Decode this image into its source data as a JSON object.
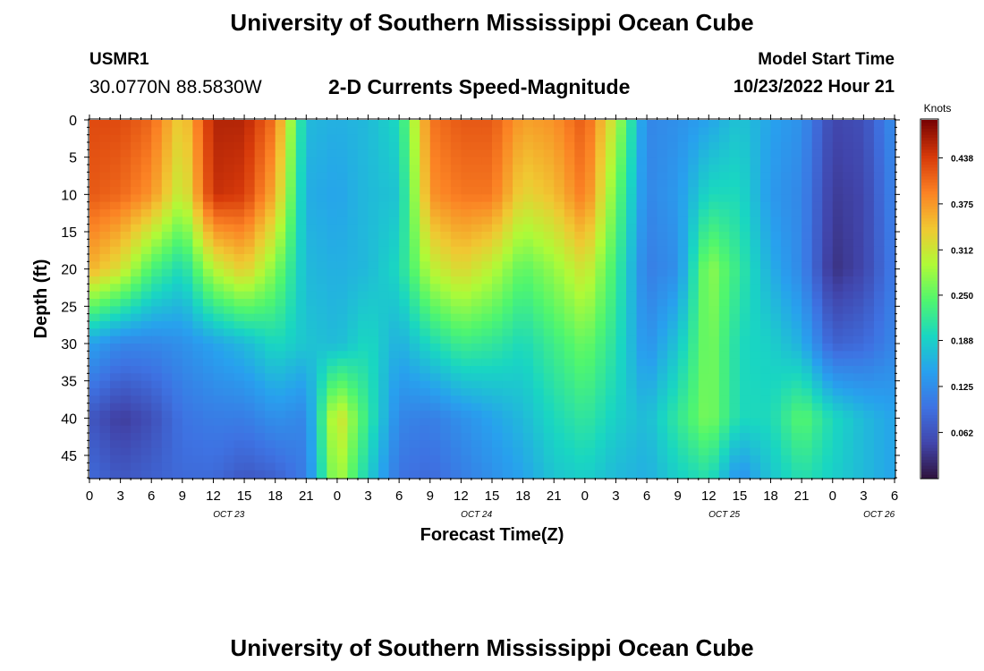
{
  "header": {
    "title": "University of Southern Mississippi Ocean Cube",
    "station": "USMR1",
    "coords": "30.0770N  88.5830W",
    "subtitle": "2-D Currents Speed-Magnitude",
    "model_start_label": "Model Start Time",
    "model_start_value": "10/23/2022 Hour 21"
  },
  "footer": {
    "title": "University of Southern Mississippi Ocean Cube"
  },
  "chart_data": {
    "type": "heatmap",
    "title": "2-D Currents Speed-Magnitude",
    "xlabel": "Forecast Time(Z)",
    "ylabel": "Depth (ft)",
    "colorbar_label": "Knots",
    "x_tick_labels": [
      "0",
      "3",
      "6",
      "9",
      "12",
      "15",
      "18",
      "21",
      "0",
      "3",
      "6",
      "9",
      "12",
      "15",
      "18",
      "21",
      "0",
      "3",
      "6",
      "9",
      "12",
      "15",
      "18",
      "21",
      "0",
      "3",
      "6"
    ],
    "date_labels": [
      "OCT 23",
      "OCT 24",
      "OCT 25",
      "OCT 26"
    ],
    "date_label_hours": [
      13.5,
      37.5,
      61.5,
      76.5
    ],
    "y_ticks": [
      0,
      5,
      10,
      15,
      20,
      25,
      30,
      35,
      40,
      45
    ],
    "ylim": [
      48,
      0
    ],
    "xlim_hours": [
      0,
      78
    ],
    "colorbar_ticks": [
      0.438,
      0.375,
      0.312,
      0.25,
      0.188,
      0.125,
      0.062
    ],
    "color_range": [
      0.0,
      0.49
    ],
    "speed_approx": {
      "hours": [
        0,
        3,
        6,
        9,
        12,
        15,
        18,
        21,
        24,
        27,
        30,
        33,
        36,
        39,
        42,
        45,
        48,
        51,
        54,
        57,
        60,
        63,
        66,
        69,
        72,
        75,
        78
      ],
      "depths": [
        0,
        10,
        20,
        30,
        40,
        48
      ],
      "values": [
        [
          0.43,
          0.43,
          0.41,
          0.33,
          0.46,
          0.46,
          0.4,
          0.17,
          0.16,
          0.17,
          0.2,
          0.4,
          0.42,
          0.42,
          0.37,
          0.38,
          0.42,
          0.3,
          0.12,
          0.13,
          0.15,
          0.18,
          0.15,
          0.13,
          0.05,
          0.06,
          0.13
        ],
        [
          0.42,
          0.41,
          0.38,
          0.3,
          0.45,
          0.44,
          0.36,
          0.16,
          0.15,
          0.17,
          0.18,
          0.38,
          0.4,
          0.4,
          0.33,
          0.35,
          0.4,
          0.26,
          0.12,
          0.14,
          0.2,
          0.2,
          0.14,
          0.12,
          0.04,
          0.05,
          0.12
        ],
        [
          0.36,
          0.32,
          0.24,
          0.2,
          0.3,
          0.34,
          0.27,
          0.17,
          0.16,
          0.17,
          0.2,
          0.3,
          0.33,
          0.3,
          0.25,
          0.28,
          0.32,
          0.23,
          0.11,
          0.13,
          0.28,
          0.22,
          0.16,
          0.12,
          0.03,
          0.05,
          0.11
        ],
        [
          0.15,
          0.12,
          0.12,
          0.13,
          0.15,
          0.17,
          0.2,
          0.18,
          0.17,
          0.2,
          0.16,
          0.2,
          0.23,
          0.22,
          0.2,
          0.23,
          0.26,
          0.21,
          0.13,
          0.18,
          0.27,
          0.2,
          0.19,
          0.16,
          0.08,
          0.09,
          0.12
        ],
        [
          0.07,
          0.04,
          0.06,
          0.1,
          0.11,
          0.11,
          0.13,
          0.12,
          0.33,
          0.22,
          0.12,
          0.11,
          0.13,
          0.15,
          0.17,
          0.2,
          0.22,
          0.19,
          0.17,
          0.22,
          0.27,
          0.2,
          0.2,
          0.25,
          0.2,
          0.17,
          0.15
        ],
        [
          0.09,
          0.07,
          0.08,
          0.09,
          0.09,
          0.07,
          0.08,
          0.11,
          0.3,
          0.19,
          0.1,
          0.09,
          0.11,
          0.13,
          0.15,
          0.18,
          0.19,
          0.17,
          0.16,
          0.19,
          0.21,
          0.13,
          0.18,
          0.21,
          0.19,
          0.17,
          0.15
        ]
      ]
    }
  }
}
